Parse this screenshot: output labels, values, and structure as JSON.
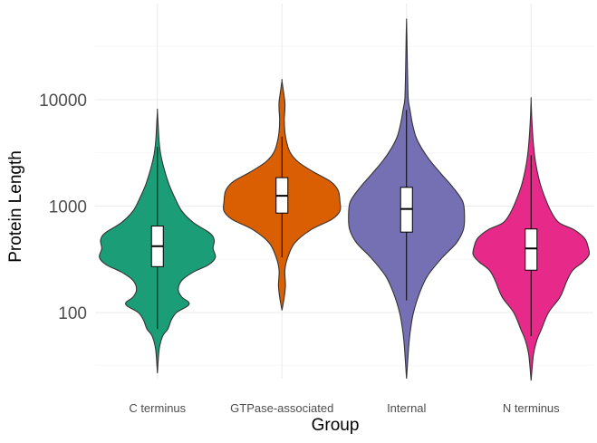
{
  "chart_data": {
    "type": "violin",
    "xlabel": "Group",
    "ylabel": "Protein Length",
    "yscale": "log10",
    "ylim": [
      18,
      60000
    ],
    "yticks": [
      {
        "value": 100,
        "label": "100"
      },
      {
        "value": 1000,
        "label": "1000"
      },
      {
        "value": 10000,
        "label": "10000"
      }
    ],
    "grid": true,
    "legend": "none",
    "categories": [
      {
        "name": "C terminus",
        "color": "#1B9E77",
        "min": 27,
        "max": 7800,
        "q1": 270,
        "median": 420,
        "q3": 650,
        "whisker_low": 70,
        "whisker_high": 3600,
        "profile": [
          [
            27,
            0.0
          ],
          [
            45,
            0.03
          ],
          [
            60,
            0.09
          ],
          [
            70,
            0.18
          ],
          [
            85,
            0.24
          ],
          [
            100,
            0.33
          ],
          [
            115,
            0.52
          ],
          [
            125,
            0.54
          ],
          [
            140,
            0.42
          ],
          [
            165,
            0.36
          ],
          [
            200,
            0.42
          ],
          [
            240,
            0.62
          ],
          [
            280,
            0.88
          ],
          [
            330,
            1.0
          ],
          [
            400,
            0.96
          ],
          [
            480,
            0.98
          ],
          [
            560,
            0.9
          ],
          [
            700,
            0.62
          ],
          [
            900,
            0.42
          ],
          [
            1200,
            0.3
          ],
          [
            1600,
            0.2
          ],
          [
            2200,
            0.12
          ],
          [
            3000,
            0.06
          ],
          [
            4000,
            0.03
          ],
          [
            5500,
            0.015
          ],
          [
            7800,
            0.0
          ]
        ]
      },
      {
        "name": "GTPase-associated",
        "color": "#D95F02",
        "min": 105,
        "max": 15000,
        "q1": 860,
        "median": 1250,
        "q3": 1850,
        "whisker_low": 330,
        "whisker_high": 4500,
        "profile": [
          [
            105,
            0.0
          ],
          [
            140,
            0.04
          ],
          [
            180,
            0.06
          ],
          [
            250,
            0.05
          ],
          [
            330,
            0.1
          ],
          [
            450,
            0.22
          ],
          [
            600,
            0.5
          ],
          [
            750,
            0.86
          ],
          [
            900,
            1.0
          ],
          [
            1100,
            1.0
          ],
          [
            1400,
            0.97
          ],
          [
            1700,
            0.84
          ],
          [
            2100,
            0.54
          ],
          [
            2600,
            0.28
          ],
          [
            3200,
            0.14
          ],
          [
            4000,
            0.08
          ],
          [
            5000,
            0.05
          ],
          [
            6500,
            0.04
          ],
          [
            8000,
            0.05
          ],
          [
            9500,
            0.05
          ],
          [
            11500,
            0.03
          ],
          [
            15000,
            0.0
          ]
        ]
      },
      {
        "name": "Internal",
        "color": "#7570B3",
        "min": 24,
        "max": 55000,
        "q1": 570,
        "median": 940,
        "q3": 1500,
        "whisker_low": 130,
        "whisker_high": 8000,
        "profile": [
          [
            24,
            0.0
          ],
          [
            35,
            0.02
          ],
          [
            50,
            0.04
          ],
          [
            70,
            0.07
          ],
          [
            100,
            0.12
          ],
          [
            150,
            0.22
          ],
          [
            220,
            0.36
          ],
          [
            330,
            0.62
          ],
          [
            450,
            0.86
          ],
          [
            600,
            0.98
          ],
          [
            800,
            1.0
          ],
          [
            1100,
            0.97
          ],
          [
            1500,
            0.8
          ],
          [
            2000,
            0.6
          ],
          [
            2700,
            0.4
          ],
          [
            3500,
            0.26
          ],
          [
            4500,
            0.16
          ],
          [
            6000,
            0.1
          ],
          [
            8000,
            0.06
          ],
          [
            10000,
            0.03
          ],
          [
            15000,
            0.02
          ],
          [
            25000,
            0.012
          ],
          [
            40000,
            0.006
          ],
          [
            55000,
            0.0
          ]
        ]
      },
      {
        "name": "N terminus",
        "color": "#E7298A",
        "min": 23,
        "max": 10000,
        "q1": 250,
        "median": 400,
        "q3": 610,
        "whisker_low": 60,
        "whisker_high": 3000,
        "profile": [
          [
            23,
            0.0
          ],
          [
            40,
            0.04
          ],
          [
            55,
            0.1
          ],
          [
            70,
            0.18
          ],
          [
            100,
            0.3
          ],
          [
            140,
            0.5
          ],
          [
            200,
            0.62
          ],
          [
            250,
            0.72
          ],
          [
            300,
            0.9
          ],
          [
            350,
            1.0
          ],
          [
            420,
            0.98
          ],
          [
            500,
            0.92
          ],
          [
            600,
            0.74
          ],
          [
            700,
            0.48
          ],
          [
            900,
            0.34
          ],
          [
            1200,
            0.24
          ],
          [
            1600,
            0.16
          ],
          [
            2200,
            0.1
          ],
          [
            3000,
            0.06
          ],
          [
            4500,
            0.03
          ],
          [
            7000,
            0.01
          ],
          [
            10000,
            0.0
          ]
        ]
      }
    ]
  }
}
